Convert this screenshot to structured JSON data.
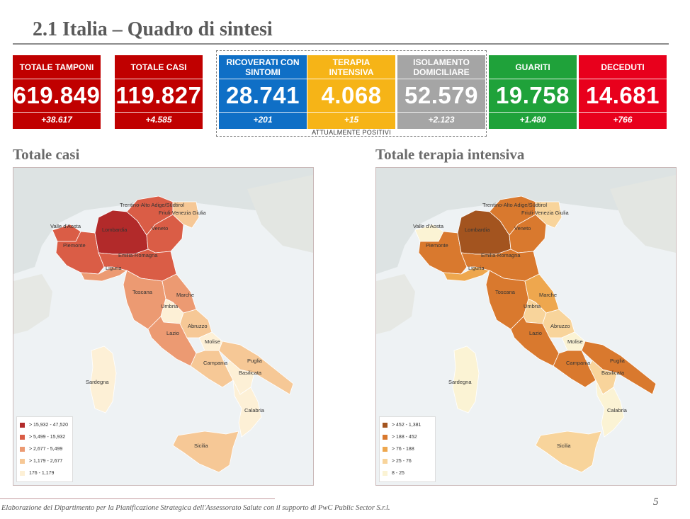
{
  "header": {
    "title": "2.1 Italia – Quadro di sintesi"
  },
  "tiles": [
    {
      "label": "TOTALE TAMPONI",
      "value": "619.849",
      "delta": "+38.617",
      "color": "#c00000"
    },
    {
      "label": "TOTALE CASI",
      "value": "119.827",
      "delta": "+4.585",
      "color": "#c00000"
    },
    {
      "label": "RICOVERATI CON SINTOMI",
      "value": "28.741",
      "delta": "+201",
      "color": "#0f6fc6"
    },
    {
      "label": "TERAPIA INTENSIVA",
      "value": "4.068",
      "delta": "+15",
      "color": "#f6b417"
    },
    {
      "label": "ISOLAMENTO DOMICILIARE",
      "value": "52.579",
      "delta": "+2.123",
      "color": "#a5a5a5"
    },
    {
      "label": "GUARITI",
      "value": "19.758",
      "delta": "+1.480",
      "color": "#1fa23a"
    },
    {
      "label": "DECEDUTI",
      "value": "14.681",
      "delta": "+766",
      "color": "#e8001c"
    }
  ],
  "positivi_label": "ATTUALMENTE POSITIVI",
  "maps": [
    {
      "title": "Totale casi",
      "legend": [
        {
          "text": "> 15,932 - 47,520",
          "color": "#b22a2a"
        },
        {
          "text": "> 5,499 - 15,932",
          "color": "#da5d46"
        },
        {
          "text": "> 2,677 - 5,499",
          "color": "#ec9a72"
        },
        {
          "text": "> 1,179 - 2,677",
          "color": "#f6c896"
        },
        {
          "text": "176 - 1,179",
          "color": "#fdf0d6"
        }
      ],
      "regions": [
        {
          "name": "Valle d'Aosta",
          "color": "#da5d46"
        },
        {
          "name": "Piemonte",
          "color": "#da5d46"
        },
        {
          "name": "Lombardia",
          "color": "#b22a2a"
        },
        {
          "name": "Trentino-Alto Adige/Südtirol",
          "color": "#da5d46"
        },
        {
          "name": "Veneto",
          "color": "#da5d46"
        },
        {
          "name": "Friuli-Venezia Giulia",
          "color": "#f6c896"
        },
        {
          "name": "Liguria",
          "color": "#ec9a72"
        },
        {
          "name": "Emilia-Romagna",
          "color": "#da5d46"
        },
        {
          "name": "Toscana",
          "color": "#ec9a72"
        },
        {
          "name": "Marche",
          "color": "#ec9a72"
        },
        {
          "name": "Umbria",
          "color": "#fdf0d6"
        },
        {
          "name": "Lazio",
          "color": "#ec9a72"
        },
        {
          "name": "Abruzzo",
          "color": "#f6c896"
        },
        {
          "name": "Molise",
          "color": "#fdf0d6"
        },
        {
          "name": "Campania",
          "color": "#f6c896"
        },
        {
          "name": "Puglia",
          "color": "#f6c896"
        },
        {
          "name": "Basilicata",
          "color": "#fdf0d6"
        },
        {
          "name": "Calabria",
          "color": "#fdf0d6"
        },
        {
          "name": "Sicilia",
          "color": "#f6c896"
        },
        {
          "name": "Sardegna",
          "color": "#fdf0d6"
        }
      ]
    },
    {
      "title": "Totale terapia intensiva",
      "legend": [
        {
          "text": "> 452 - 1,381",
          "color": "#a3541f"
        },
        {
          "text": "> 188 - 452",
          "color": "#d9792e"
        },
        {
          "text": "> 76 - 188",
          "color": "#eea74e"
        },
        {
          "text": "> 25 - 76",
          "color": "#f8d49b"
        },
        {
          "text": "8 - 25",
          "color": "#fbf3d4"
        }
      ],
      "regions": [
        {
          "name": "Valle d'Aosta",
          "color": "#fbf3d4"
        },
        {
          "name": "Piemonte",
          "color": "#d9792e"
        },
        {
          "name": "Lombardia",
          "color": "#a3541f"
        },
        {
          "name": "Trentino-Alto Adige/Südtirol",
          "color": "#d9792e"
        },
        {
          "name": "Veneto",
          "color": "#d9792e"
        },
        {
          "name": "Friuli-Venezia Giulia",
          "color": "#f8d49b"
        },
        {
          "name": "Liguria",
          "color": "#eea74e"
        },
        {
          "name": "Emilia-Romagna",
          "color": "#d9792e"
        },
        {
          "name": "Toscana",
          "color": "#d9792e"
        },
        {
          "name": "Marche",
          "color": "#eea74e"
        },
        {
          "name": "Umbria",
          "color": "#f8d49b"
        },
        {
          "name": "Lazio",
          "color": "#d9792e"
        },
        {
          "name": "Abruzzo",
          "color": "#f8d49b"
        },
        {
          "name": "Molise",
          "color": "#fbf3d4"
        },
        {
          "name": "Campania",
          "color": "#d9792e"
        },
        {
          "name": "Puglia",
          "color": "#d9792e"
        },
        {
          "name": "Basilicata",
          "color": "#f8d49b"
        },
        {
          "name": "Calabria",
          "color": "#fbf3d4"
        },
        {
          "name": "Sicilia",
          "color": "#f8d49b"
        },
        {
          "name": "Sardegna",
          "color": "#fbf3d4"
        }
      ]
    }
  ],
  "footer": {
    "text": "Elaborazione del Dipartimento per la Pianificazione Strategica dell'Assessorato Salute con il supporto di PwC Public Sector S.r.l.",
    "page": "5"
  }
}
